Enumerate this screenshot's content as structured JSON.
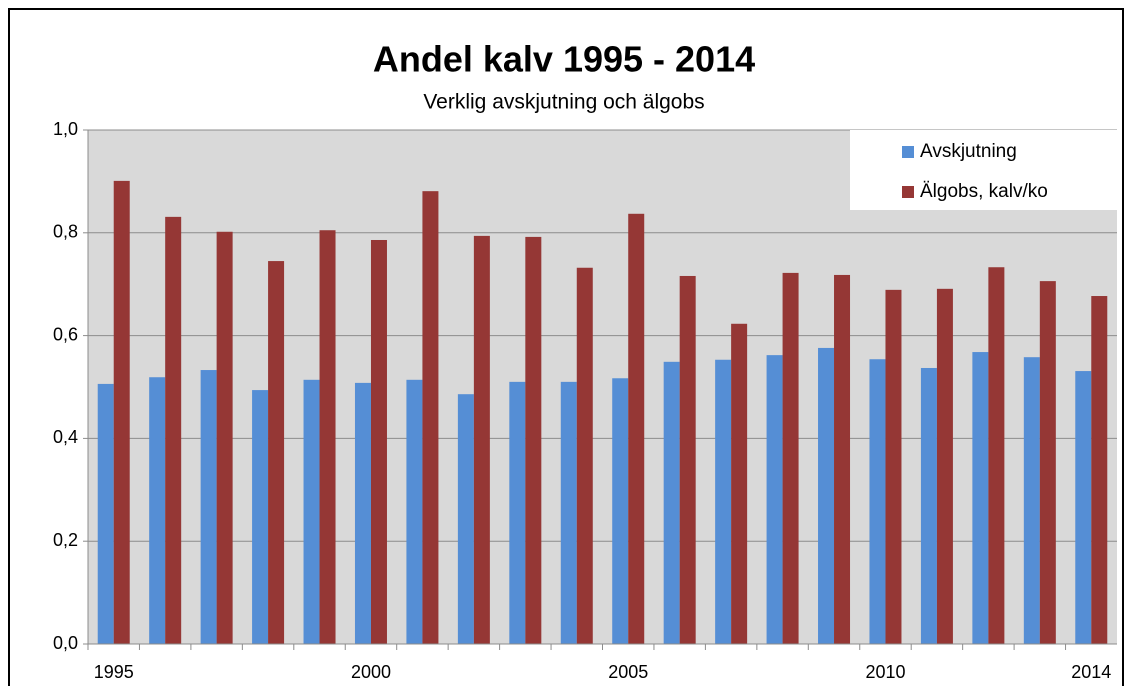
{
  "chart_data": {
    "type": "bar",
    "title": "Andel kalv 1995 - 2014",
    "subtitle": "Verklig avskjutning och älgobs",
    "categories": [
      "1995",
      null,
      null,
      null,
      null,
      "2000",
      null,
      null,
      null,
      null,
      "2005",
      null,
      null,
      null,
      null,
      "2010",
      null,
      null,
      null,
      "2014"
    ],
    "series": [
      {
        "name": "Avskjutning",
        "color": "#558ed5",
        "values": [
          0.506,
          0.519,
          0.533,
          0.494,
          0.514,
          0.508,
          0.514,
          0.486,
          0.51,
          0.51,
          0.517,
          0.549,
          0.553,
          0.562,
          0.576,
          0.554,
          0.537,
          0.568,
          0.558,
          0.531
        ]
      },
      {
        "name": "Älgobs, kalv/ko",
        "color": "#953735",
        "values": [
          0.901,
          0.831,
          0.802,
          0.745,
          0.805,
          0.786,
          0.881,
          0.794,
          0.792,
          0.732,
          0.837,
          0.716,
          0.623,
          0.722,
          0.718,
          0.689,
          0.691,
          0.733,
          0.706,
          0.677
        ]
      }
    ],
    "ylim": [
      0,
      1
    ],
    "yticks": [
      {
        "value": 0,
        "label": "0,0"
      },
      {
        "value": 0.2,
        "label": "0,2"
      },
      {
        "value": 0.4,
        "label": "0,4"
      },
      {
        "value": 0.6,
        "label": "0,6"
      },
      {
        "value": 0.8,
        "label": "0,8"
      },
      {
        "value": 1,
        "label": "1,0"
      }
    ],
    "grid": true,
    "legend": "upper right"
  }
}
